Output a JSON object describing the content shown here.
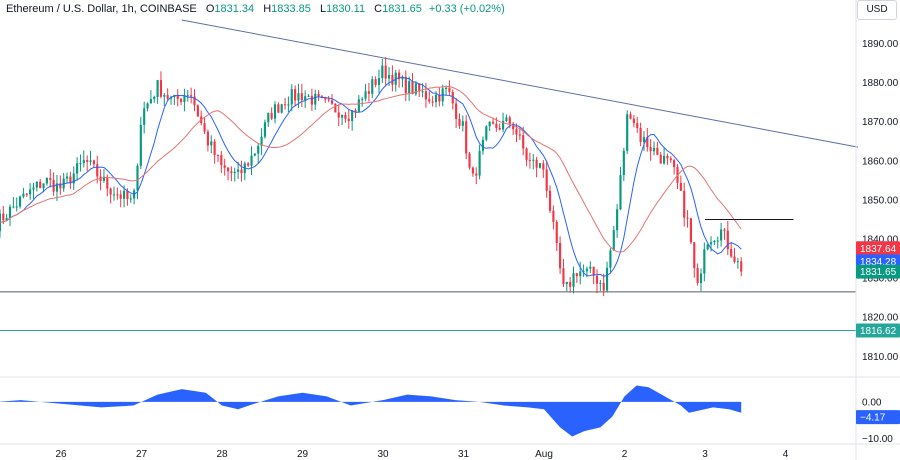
{
  "header": {
    "symbol": "Ethereum / U.S. Dollar, 1h, COINBASE",
    "o_label": "O",
    "o": "1831.34",
    "h_label": "H",
    "h": "1833.85",
    "l_label": "L",
    "l": "1830.11",
    "c_label": "C",
    "c": "1831.65",
    "change": "+0.33 (+0.02%)"
  },
  "currency_button": "USD",
  "colors": {
    "up": "#089981",
    "down": "#f23645",
    "ma_fast": "#2962ff",
    "ma_slow": "#e57373",
    "trend": "#5b6fa8",
    "osc": "#2962ff"
  },
  "chart_data": [
    {
      "type": "candlestick",
      "ylim": [
        1806,
        1896
      ],
      "y_ticks": [
        1810,
        1820,
        1830,
        1840,
        1850,
        1860,
        1870,
        1880,
        1890
      ],
      "x_tick_labels": [
        "26",
        "27",
        "28",
        "29",
        "30",
        "31",
        "Aug",
        "2",
        "3",
        "4"
      ],
      "x_tick_days": [
        26,
        27,
        28,
        29,
        30,
        31,
        32,
        33,
        34,
        35
      ],
      "start_day": 25.2,
      "bars_per_day": 24,
      "close_path": [
        [
          25.2,
          1844
        ],
        [
          25.5,
          1850
        ],
        [
          25.8,
          1855
        ],
        [
          26.0,
          1853
        ],
        [
          26.3,
          1860
        ],
        [
          26.6,
          1853
        ],
        [
          26.9,
          1849
        ],
        [
          27.0,
          1872
        ],
        [
          27.2,
          1879
        ],
        [
          27.4,
          1875
        ],
        [
          27.6,
          1878
        ],
        [
          27.8,
          1866
        ],
        [
          28.0,
          1858
        ],
        [
          28.2,
          1856
        ],
        [
          28.4,
          1862
        ],
        [
          28.6,
          1872
        ],
        [
          28.8,
          1876
        ],
        [
          29.0,
          1877
        ],
        [
          29.3,
          1874
        ],
        [
          29.6,
          1872
        ],
        [
          30.0,
          1883
        ],
        [
          30.3,
          1879
        ],
        [
          30.6,
          1876
        ],
        [
          30.8,
          1878
        ],
        [
          31.0,
          1868
        ],
        [
          31.1,
          1854
        ],
        [
          31.3,
          1868
        ],
        [
          31.6,
          1870
        ],
        [
          31.8,
          1860
        ],
        [
          32.0,
          1858
        ],
        [
          32.15,
          1838
        ],
        [
          32.25,
          1826
        ],
        [
          32.4,
          1832
        ],
        [
          32.6,
          1831
        ],
        [
          32.75,
          1828
        ],
        [
          32.9,
          1846
        ],
        [
          33.05,
          1874
        ],
        [
          33.2,
          1866
        ],
        [
          33.5,
          1860
        ],
        [
          33.6,
          1858
        ],
        [
          33.8,
          1843
        ],
        [
          33.9,
          1826
        ],
        [
          34.0,
          1840
        ],
        [
          34.2,
          1842
        ],
        [
          34.4,
          1834
        ],
        [
          34.45,
          1831.65
        ]
      ],
      "lines": [
        {
          "name": "",
          "points": [
            [
              27.5,
              1896
            ],
            [
              35.9,
              1863.5
            ]
          ]
        },
        {
          "name": "",
          "points": [
            [
              34.0,
              1845
            ],
            [
              35.1,
              1845
            ]
          ]
        }
      ],
      "horizontal_levels": [
        1826.5,
        1816.62
      ],
      "price_labels": [
        {
          "value": 1837.64,
          "text": "1837.64",
          "color": "#f23645"
        },
        {
          "value": 1834.28,
          "text": "1834.28",
          "color": "#2962ff"
        },
        {
          "value": 1831.65,
          "text": "1831.65",
          "color": "#089981"
        },
        {
          "value": 1816.62,
          "text": "1816.62",
          "color": "#26a69a"
        }
      ]
    },
    {
      "type": "area",
      "ylim": [
        -11,
        6
      ],
      "y_ticks": [
        0,
        -10
      ],
      "y_tick_labels": [
        "0.00",
        "−10.00"
      ],
      "path": [
        [
          25.2,
          0
        ],
        [
          25.5,
          0.5
        ],
        [
          26.0,
          -0.5
        ],
        [
          26.5,
          -1.5
        ],
        [
          26.9,
          -1
        ],
        [
          27.2,
          2
        ],
        [
          27.5,
          3.5
        ],
        [
          27.8,
          2.5
        ],
        [
          28.0,
          -1
        ],
        [
          28.2,
          -2
        ],
        [
          28.4,
          -0.5
        ],
        [
          28.7,
          1.5
        ],
        [
          29.0,
          2.5
        ],
        [
          29.3,
          1.5
        ],
        [
          29.6,
          -1
        ],
        [
          30.0,
          0.5
        ],
        [
          30.3,
          2
        ],
        [
          30.6,
          1.5
        ],
        [
          30.9,
          0.5
        ],
        [
          31.2,
          0
        ],
        [
          31.5,
          -1
        ],
        [
          31.8,
          -1.5
        ],
        [
          32.0,
          -2
        ],
        [
          32.2,
          -7
        ],
        [
          32.35,
          -9.5
        ],
        [
          32.5,
          -8
        ],
        [
          32.7,
          -7
        ],
        [
          32.85,
          -4
        ],
        [
          33.0,
          1.5
        ],
        [
          33.15,
          4.5
        ],
        [
          33.3,
          4
        ],
        [
          33.5,
          1.5
        ],
        [
          33.7,
          -1
        ],
        [
          33.8,
          -3
        ],
        [
          33.9,
          -2.5
        ],
        [
          34.1,
          -1.5
        ],
        [
          34.3,
          -2
        ],
        [
          34.45,
          -3
        ]
      ],
      "value_label": {
        "value": -4.17,
        "text": "−4.17",
        "color": "#2962ff"
      }
    }
  ]
}
